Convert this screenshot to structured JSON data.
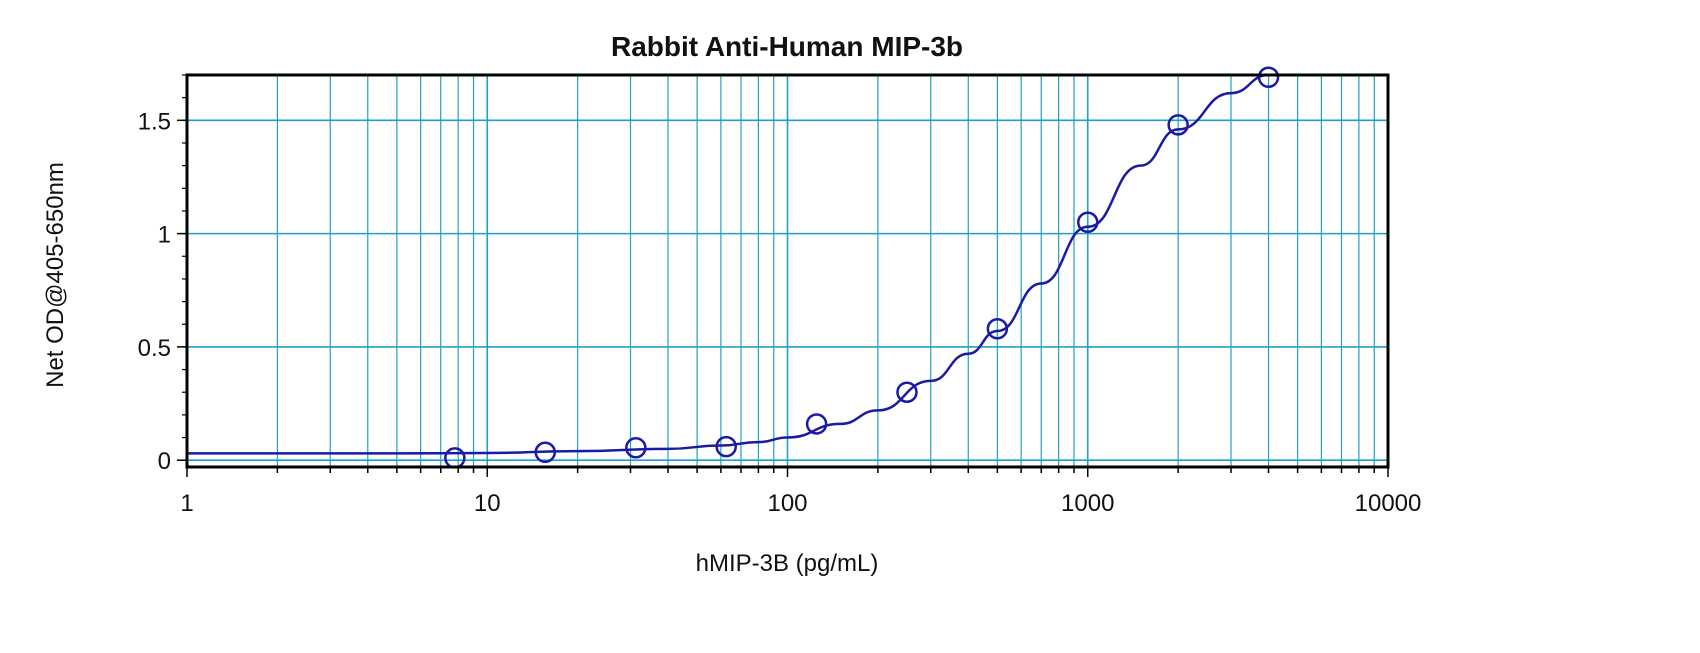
{
  "chart_data": {
    "type": "scatter",
    "title": "Rabbit Anti-Human MIP-3b",
    "xlabel": "hMIP-3B (pg/mL)",
    "ylabel": "Net OD@405-650nm",
    "x_scale": "log",
    "xlim": [
      1,
      10000
    ],
    "ylim": [
      -0.03,
      1.7
    ],
    "grid": true,
    "x_ticks": [
      1,
      10,
      100,
      1000,
      10000
    ],
    "x_tick_labels": [
      "1",
      "10",
      "100",
      "1000",
      "10000"
    ],
    "y_ticks": [
      0,
      0.5,
      1,
      1.5
    ],
    "y_tick_labels": [
      "0",
      "0.5",
      "1",
      "1.5"
    ],
    "series": [
      {
        "points": {
          "x": [
            7.8,
            15.6,
            31.25,
            62.5,
            125,
            250,
            500,
            1000,
            2000,
            4000
          ],
          "y": [
            0.01,
            0.035,
            0.055,
            0.06,
            0.16,
            0.3,
            0.58,
            1.05,
            1.48,
            1.69
          ]
        },
        "fit_curve": {
          "x": [
            1,
            5,
            10,
            20,
            40,
            60,
            80,
            100,
            150,
            200,
            300,
            400,
            500,
            700,
            1000,
            1500,
            2000,
            3000,
            4000
          ],
          "y": [
            0.03,
            0.03,
            0.032,
            0.04,
            0.05,
            0.065,
            0.08,
            0.1,
            0.16,
            0.22,
            0.35,
            0.47,
            0.57,
            0.78,
            1.03,
            1.3,
            1.46,
            1.62,
            1.7
          ]
        }
      }
    ],
    "colors": {
      "series": "#1a1aa6",
      "grid": "#1fa0c8",
      "axis": "#000000"
    }
  }
}
